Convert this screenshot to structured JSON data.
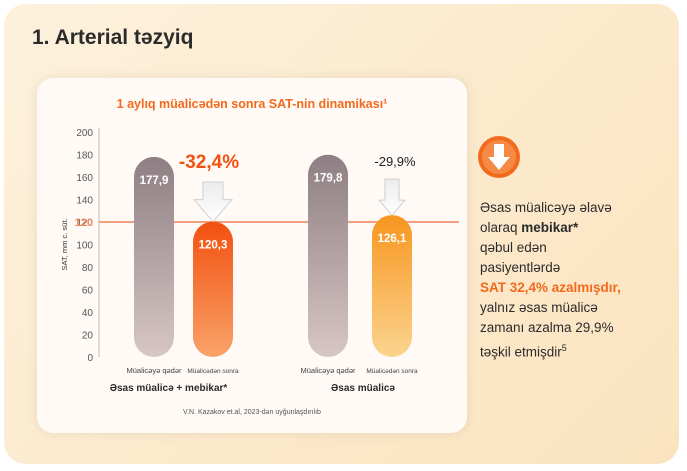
{
  "page": {
    "title": "1. Arterial təzyiq"
  },
  "side": {
    "arrow_icon": "down-arrow-circle-icon",
    "line1": "Əsas müalicəyə əlavə",
    "line2_pre": "olaraq ",
    "line2_bold": "mebikar*",
    "line3": "qəbul edən",
    "line4": "pasiyentlərdə",
    "line5": "SAT 32,4% azalmışdır,",
    "line6": "yalnız əsas müalicə",
    "line7": "zamanı azalma 29,9%",
    "line8_pre": "təşkil etmişdir",
    "line8_sup": "5"
  },
  "chart_data": {
    "type": "bar",
    "title": "1 aylıq müalicədən sonra SAT-nin dinamikası¹",
    "ylabel": "SAT, mm c. süt.",
    "ylim": [
      0,
      200
    ],
    "yticks": [
      "200",
      "180",
      "160",
      "140",
      "120",
      "100",
      "80",
      "60",
      "40",
      "20",
      "0"
    ],
    "reference_line": {
      "value": 120,
      "label": "120"
    },
    "groups": [
      {
        "name": "Əsas müalicə + mebikar*",
        "change": "-32,4%",
        "bars": [
          {
            "label": "Müalicəyə qədər",
            "value": 177.9,
            "display": "177,9"
          },
          {
            "label": "Müalicədən sonra",
            "value": 120.3,
            "display": "120,3"
          }
        ]
      },
      {
        "name": "Əsas müalicə",
        "change": "-29,9%",
        "bars": [
          {
            "label": "Müalicəyə qədər",
            "value": 179.8,
            "display": "179,8"
          },
          {
            "label": "Müalicədən sonra",
            "value": 126.1,
            "display": "126,1"
          }
        ]
      }
    ],
    "source": "V.N. Kazakov et.al, 2023-dən uyğunlaşdırılıb",
    "colors": {
      "before": "#9a8c8f",
      "after": "#f25a12",
      "after_group2": "#f7a63a",
      "reference": "#f4a07e",
      "title": "#f26a1b"
    }
  }
}
